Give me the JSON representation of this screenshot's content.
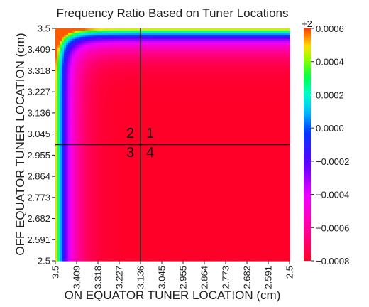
{
  "chart_data": {
    "type": "heatmap",
    "title": "Frequency Ratio Based on Tuner Locations",
    "xlabel": "ON EQUATOR TUNER LOCATION (cm)",
    "ylabel": "OFF EQUATOR TUNER LOCATION (cm)",
    "x_range": [
      3.5,
      2.5
    ],
    "y_range": [
      2.5,
      3.5
    ],
    "x_ticks": [
      "3.5",
      "3.409",
      "3.318",
      "3.227",
      "3.136",
      "3.045",
      "2.955",
      "2.864",
      "2.773",
      "2.682",
      "2.591",
      "2.5"
    ],
    "y_ticks": [
      "3.5",
      "3.409",
      "3.318",
      "3.227",
      "3.136",
      "3.045",
      "2.955",
      "2.864",
      "2.773",
      "2.682",
      "2.591",
      "2.5"
    ],
    "colorbar": {
      "offset_label": "+2",
      "ticks": [
        0.0006,
        0.0004,
        0.0002,
        0.0,
        -0.0002,
        -0.0004,
        -0.0006,
        -0.0008
      ],
      "tick_labels": [
        "0.0006",
        "0.0004",
        "0.0002",
        "0.0000",
        "−0.0002",
        "−0.0004",
        "−0.0006",
        "−0.0008"
      ],
      "range": [
        -0.0008,
        0.0006
      ],
      "colormap": "gist_rainbow_r"
    },
    "crosshair": {
      "x": 3.136,
      "y": 3.0
    },
    "quadrant_labels": [
      "1",
      "2",
      "3",
      "4"
    ],
    "grid": false
  }
}
